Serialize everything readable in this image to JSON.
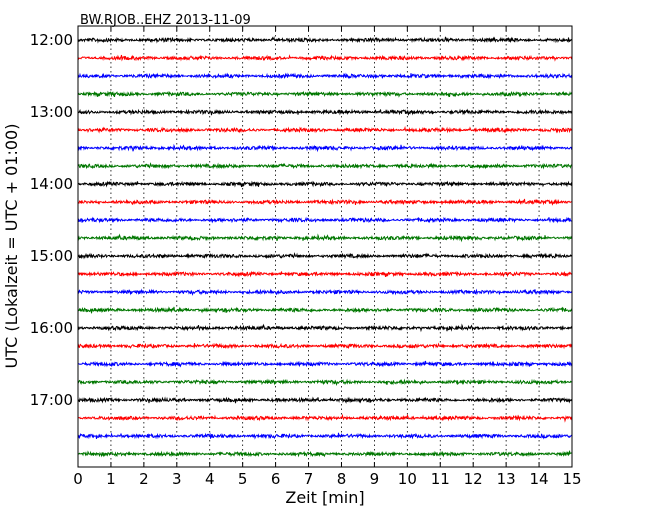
{
  "chart_data": {
    "type": "line",
    "title": "BW.RJOB..EHZ 2013-11-09",
    "xlabel": "Zeit  [min]",
    "ylabel": "UTC (Lokalzeit = UTC + 01:00)",
    "xlim": [
      0,
      15
    ],
    "x_ticks": [
      "0",
      "1",
      "2",
      "3",
      "4",
      "5",
      "6",
      "7",
      "8",
      "9",
      "10",
      "11",
      "12",
      "13",
      "14",
      "15"
    ],
    "y_tick_labels": [
      "12:00",
      "13:00",
      "14:00",
      "15:00",
      "16:00",
      "17:00"
    ],
    "grid": "vertical dotted",
    "trace_interval_min": 15,
    "color_cycle": [
      "#000000",
      "#ff0000",
      "#0000ff",
      "#007700"
    ],
    "traces": [
      {
        "start": "12:00",
        "color": "#000000"
      },
      {
        "start": "12:15",
        "color": "#ff0000"
      },
      {
        "start": "12:30",
        "color": "#0000ff"
      },
      {
        "start": "12:45",
        "color": "#007700"
      },
      {
        "start": "13:00",
        "color": "#000000"
      },
      {
        "start": "13:15",
        "color": "#ff0000"
      },
      {
        "start": "13:30",
        "color": "#0000ff"
      },
      {
        "start": "13:45",
        "color": "#007700"
      },
      {
        "start": "14:00",
        "color": "#000000"
      },
      {
        "start": "14:15",
        "color": "#ff0000"
      },
      {
        "start": "14:30",
        "color": "#0000ff"
      },
      {
        "start": "14:45",
        "color": "#007700"
      },
      {
        "start": "15:00",
        "color": "#000000"
      },
      {
        "start": "15:15",
        "color": "#ff0000"
      },
      {
        "start": "15:30",
        "color": "#0000ff"
      },
      {
        "start": "15:45",
        "color": "#007700"
      },
      {
        "start": "16:00",
        "color": "#000000"
      },
      {
        "start": "16:15",
        "color": "#ff0000"
      },
      {
        "start": "16:30",
        "color": "#0000ff"
      },
      {
        "start": "16:45",
        "color": "#007700"
      },
      {
        "start": "17:00",
        "color": "#000000"
      },
      {
        "start": "17:15",
        "color": "#ff0000"
      },
      {
        "start": "17:30",
        "color": "#0000ff"
      },
      {
        "start": "17:45",
        "color": "#007700"
      }
    ]
  }
}
